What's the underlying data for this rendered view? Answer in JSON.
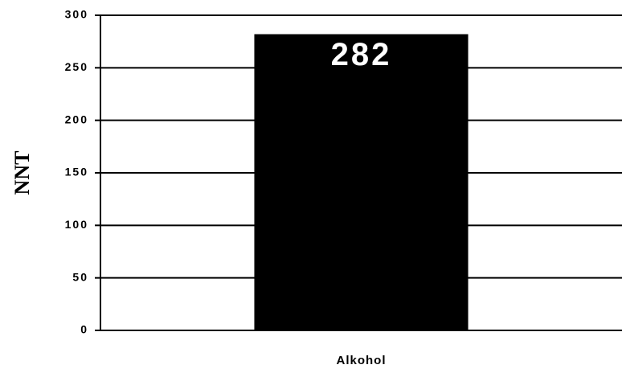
{
  "chart_data": {
    "type": "bar",
    "ylabel": "NNT",
    "categories": [
      "Alkohol"
    ],
    "values": [
      282
    ],
    "color": "#000000",
    "ylim": [
      0,
      300
    ],
    "yticks": [
      0,
      50,
      100,
      150,
      200,
      250,
      300
    ],
    "grid": true
  }
}
